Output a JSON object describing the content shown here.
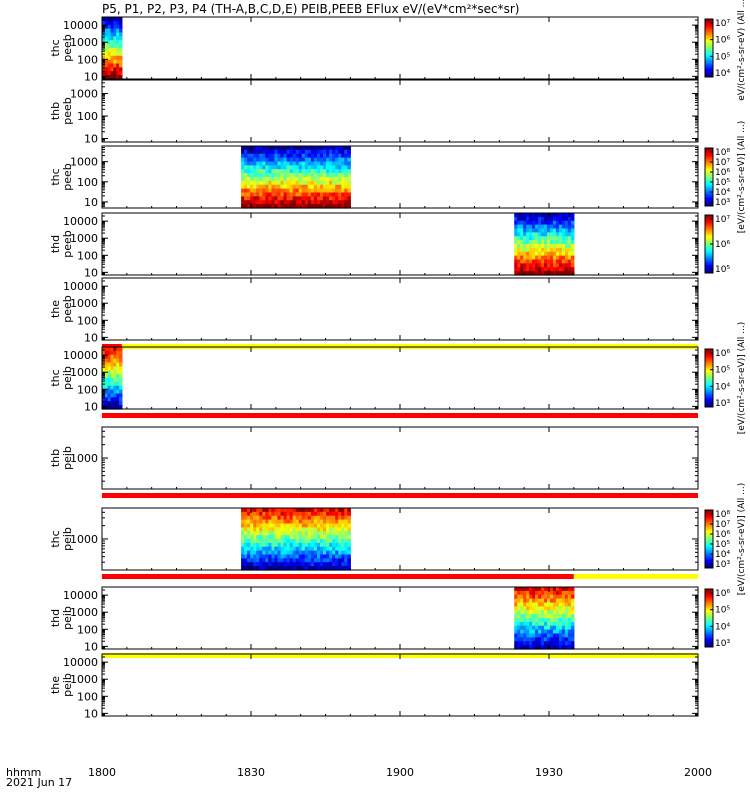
{
  "title": "P5, P1, P2, P3, P4 (TH-A,B,C,D,E) PEIB,PEEB EFlux eV/(eV*cm²*sec*sr)",
  "footer": {
    "line1": "hhmm",
    "line2": "2021 Jun 17"
  },
  "x_tick_labels": [
    "1800",
    "1830",
    "1900",
    "1930",
    "2000"
  ],
  "colorbar_labels": {
    "peeb_top": "eV/(cm²-s-sr-eV) (All ...)",
    "peeb_low": "[eV/(cm²-s-sr-eV)] (All ...)",
    "peib_top": "[eV/(cm²-s-sr-eV)] (All ...)",
    "peib_low": "[eV/(cm²-s-sr-eV)] (All ...)"
  },
  "chart_data": {
    "type": "heatmap",
    "x_range_minutes": [
      0,
      120
    ],
    "x_ticks": [
      {
        "label": "1800",
        "value": 0
      },
      {
        "label": "1830",
        "value": 30
      },
      {
        "label": "1900",
        "value": 60
      },
      {
        "label": "1930",
        "value": 90
      },
      {
        "label": "2000",
        "value": 120
      }
    ],
    "yscale": "log",
    "panels": [
      {
        "probe": "thc",
        "product": "peeb",
        "ylabel": [
          "thc",
          "peeb"
        ],
        "ylim": [
          7,
          30000
        ],
        "yticks": [
          "10",
          "100",
          "1000",
          "10000"
        ],
        "data_spans": [
          [
            0,
            4
          ]
        ],
        "colorbar": {
          "ticks": [
            "10⁴",
            "10⁵",
            "10⁶",
            "10⁷"
          ]
        },
        "flags": []
      },
      {
        "probe": "thb",
        "product": "peeb",
        "ylabel": [
          "thb",
          "peeb"
        ],
        "ylim": [
          7,
          4000
        ],
        "yticks": [
          "10",
          "100",
          "1000"
        ],
        "data_spans": [],
        "colorbar": null,
        "flags": []
      },
      {
        "probe": "thc",
        "product": "peeb",
        "ylabel": [
          "thc",
          "peeb"
        ],
        "ylim": [
          5,
          6000
        ],
        "yticks": [
          "10",
          "100",
          "1000"
        ],
        "data_spans": [
          [
            28,
            50
          ]
        ],
        "colorbar": {
          "ticks": [
            "10³",
            "10⁴",
            "10⁵",
            "10⁶",
            "10⁷",
            "10⁸"
          ]
        },
        "flags": []
      },
      {
        "probe": "thd",
        "product": "peeb",
        "ylabel": [
          "thd",
          "peeb"
        ],
        "ylim": [
          7,
          30000
        ],
        "yticks": [
          "10",
          "100",
          "1000",
          "10000"
        ],
        "data_spans": [
          [
            83,
            95
          ]
        ],
        "colorbar": {
          "ticks": [
            "10⁵",
            "10⁶",
            "10⁷"
          ]
        },
        "flags": []
      },
      {
        "probe": "the",
        "product": "peeb",
        "ylabel": [
          "the",
          "peeb"
        ],
        "ylim": [
          7,
          30000
        ],
        "yticks": [
          "10",
          "100",
          "1000",
          "10000"
        ],
        "data_spans": [],
        "colorbar": null,
        "flags": [
          {
            "color": "#ff0000",
            "x": [
              0,
              4
            ]
          },
          {
            "color": "#ffff00",
            "x": [
              4,
              120
            ]
          }
        ]
      },
      {
        "probe": "thc",
        "product": "peib",
        "ylabel": [
          "thc",
          "peib"
        ],
        "ylim": [
          7,
          30000
        ],
        "yticks": [
          "10",
          "100",
          "1000",
          "10000"
        ],
        "data_spans": [
          [
            0,
            4
          ]
        ],
        "colorbar": {
          "ticks": [
            "10³",
            "10⁴",
            "10⁵",
            "10⁶"
          ]
        },
        "flags": [
          {
            "color": "#ff0000",
            "x": [
              0,
              120
            ]
          }
        ]
      },
      {
        "probe": "thb",
        "product": "peib",
        "ylabel": [
          "thb",
          "peib"
        ],
        "ylim": [
          200,
          5000
        ],
        "yticks": [
          "1000"
        ],
        "data_spans": [],
        "colorbar": null,
        "flags": [
          {
            "color": "#ff0000",
            "x": [
              0,
              120
            ]
          }
        ]
      },
      {
        "probe": "thc",
        "product": "peib",
        "ylabel": [
          "thc",
          "peib"
        ],
        "ylim": [
          200,
          5000
        ],
        "yticks": [
          "1000"
        ],
        "data_spans": [
          [
            28,
            50
          ]
        ],
        "colorbar": {
          "ticks": [
            "10³",
            "10⁴",
            "10⁵",
            "10⁶",
            "10⁷",
            "10⁸"
          ]
        },
        "flags": [
          {
            "color": "#ff0000",
            "x": [
              0,
              95
            ]
          },
          {
            "color": "#ffff00",
            "x": [
              95,
              120
            ]
          }
        ]
      },
      {
        "probe": "thd",
        "product": "peib",
        "ylabel": [
          "thd",
          "peib"
        ],
        "ylim": [
          7,
          30000
        ],
        "yticks": [
          "10",
          "100",
          "1000",
          "10000"
        ],
        "data_spans": [
          [
            83,
            95
          ]
        ],
        "colorbar": {
          "ticks": [
            "10³",
            "10⁴",
            "10⁵",
            "10⁶"
          ]
        },
        "flags": [
          {
            "color": "#ffff00",
            "x": [
              0,
              120
            ]
          }
        ]
      },
      {
        "probe": "the",
        "product": "peib",
        "ylabel": [
          "the",
          "peib"
        ],
        "ylim": [
          7,
          30000
        ],
        "yticks": [
          "10",
          "100",
          "1000",
          "10000"
        ],
        "data_spans": [],
        "colorbar": null,
        "flags": []
      }
    ]
  }
}
